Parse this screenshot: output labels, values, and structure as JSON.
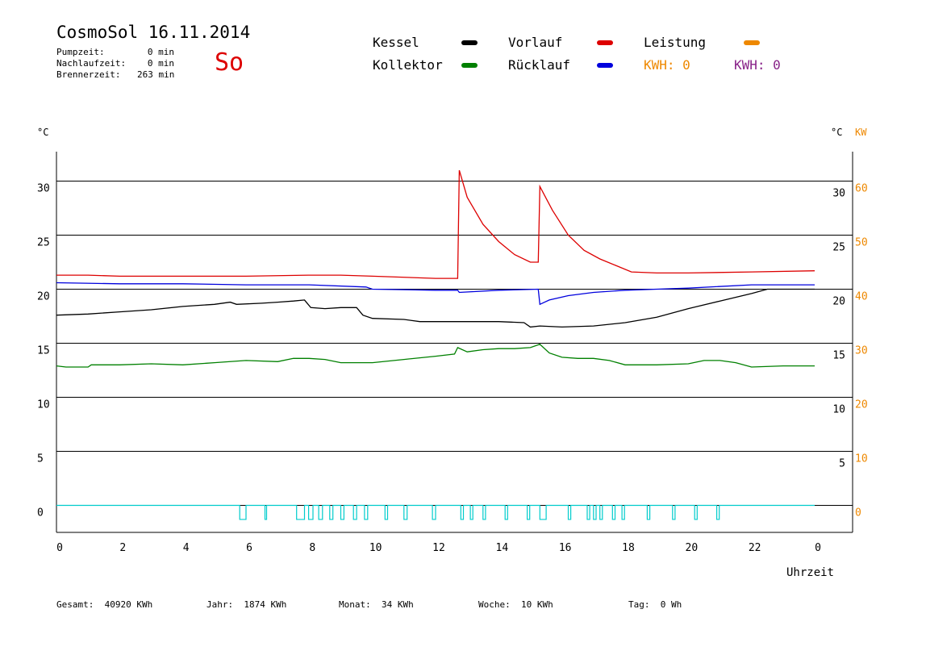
{
  "header": {
    "title": "CosmoSol 16.11.2014",
    "weekday": "So",
    "stats": [
      {
        "label": "Pumpzeit:",
        "value": "0 min"
      },
      {
        "label": "Nachlaufzeit:",
        "value": "0 min"
      },
      {
        "label": "Brennerzeit:",
        "value": "263 min"
      }
    ]
  },
  "legend": {
    "items": [
      {
        "label": "Kessel",
        "color": "#000000"
      },
      {
        "label": "Vorlauf",
        "color": "#dd0000"
      },
      {
        "label": "Leistung",
        "color": "#ee8800"
      },
      {
        "label": "Kollektor",
        "color": "#008000"
      },
      {
        "label": "Rücklauf",
        "color": "#0000dd"
      }
    ],
    "kwh_left": {
      "text": "KWH: 0",
      "color": "#ee8800"
    },
    "kwh_right": {
      "text": "KWH: 0",
      "color": "#882288"
    }
  },
  "chart_data": {
    "type": "line",
    "x_label": "Uhrzeit",
    "x_tick_labels": [
      "0",
      "2",
      "4",
      "6",
      "8",
      "10",
      "12",
      "14",
      "16",
      "18",
      "20",
      "22",
      "0"
    ],
    "xlim": [
      0,
      24
    ],
    "y_left_unit": "°C",
    "y_right_unit": "°C",
    "y_right2_unit": "KW",
    "y_left_ticks": [
      "0",
      "5",
      "10",
      "15",
      "20",
      "25",
      "30"
    ],
    "y_right_ticks": [
      "5",
      "10",
      "15",
      "20",
      "25",
      "30"
    ],
    "y_right2_ticks": [
      "0",
      "10",
      "20",
      "30",
      "40",
      "50",
      "60"
    ],
    "ylim": [
      -2.5,
      32.7
    ],
    "grid": true,
    "series": [
      {
        "name": "Vorlauf",
        "color": "#dd0000",
        "points": [
          [
            0,
            21.3
          ],
          [
            1,
            21.3
          ],
          [
            2,
            21.2
          ],
          [
            4,
            21.2
          ],
          [
            6,
            21.2
          ],
          [
            8,
            21.3
          ],
          [
            9,
            21.3
          ],
          [
            10,
            21.2
          ],
          [
            12,
            21.0
          ],
          [
            12.7,
            21.0
          ],
          [
            12.75,
            31.0
          ],
          [
            13.0,
            28.5
          ],
          [
            13.5,
            26.0
          ],
          [
            14.0,
            24.4
          ],
          [
            14.5,
            23.2
          ],
          [
            15.0,
            22.5
          ],
          [
            15.25,
            22.5
          ],
          [
            15.3,
            29.5
          ],
          [
            15.7,
            27.3
          ],
          [
            16.2,
            25.0
          ],
          [
            16.7,
            23.6
          ],
          [
            17.2,
            22.8
          ],
          [
            17.7,
            22.2
          ],
          [
            18.2,
            21.6
          ],
          [
            19,
            21.5
          ],
          [
            20,
            21.5
          ],
          [
            22,
            21.6
          ],
          [
            24,
            21.7
          ]
        ]
      },
      {
        "name": "Rücklauf",
        "color": "#0000dd",
        "points": [
          [
            0,
            20.6
          ],
          [
            2,
            20.5
          ],
          [
            4,
            20.5
          ],
          [
            6,
            20.4
          ],
          [
            8,
            20.4
          ],
          [
            9.8,
            20.2
          ],
          [
            10,
            20.0
          ],
          [
            12,
            19.9
          ],
          [
            12.7,
            19.9
          ],
          [
            12.75,
            19.7
          ],
          [
            14,
            19.9
          ],
          [
            15.25,
            20.0
          ],
          [
            15.3,
            18.6
          ],
          [
            15.6,
            19.0
          ],
          [
            16.2,
            19.4
          ],
          [
            17,
            19.7
          ],
          [
            18,
            19.9
          ],
          [
            19,
            20.0
          ],
          [
            20,
            20.1
          ],
          [
            22,
            20.4
          ],
          [
            24,
            20.4
          ]
        ]
      },
      {
        "name": "Kessel",
        "color": "#000000",
        "points": [
          [
            0,
            17.6
          ],
          [
            1,
            17.7
          ],
          [
            2,
            17.9
          ],
          [
            3,
            18.1
          ],
          [
            4,
            18.4
          ],
          [
            5,
            18.6
          ],
          [
            5.5,
            18.8
          ],
          [
            5.7,
            18.6
          ],
          [
            6.5,
            18.7
          ],
          [
            7,
            18.8
          ],
          [
            7.5,
            18.9
          ],
          [
            7.85,
            19.0
          ],
          [
            8.05,
            18.3
          ],
          [
            8.5,
            18.2
          ],
          [
            9,
            18.3
          ],
          [
            9.5,
            18.3
          ],
          [
            9.7,
            17.6
          ],
          [
            10,
            17.3
          ],
          [
            11,
            17.2
          ],
          [
            11.5,
            17.0
          ],
          [
            12,
            17.0
          ],
          [
            13,
            17.0
          ],
          [
            14,
            17.0
          ],
          [
            14.8,
            16.9
          ],
          [
            15,
            16.5
          ],
          [
            15.3,
            16.6
          ],
          [
            16,
            16.5
          ],
          [
            17,
            16.6
          ],
          [
            18,
            16.9
          ],
          [
            19,
            17.4
          ],
          [
            20,
            18.2
          ],
          [
            21,
            18.9
          ],
          [
            22,
            19.6
          ],
          [
            22.5,
            20.0
          ],
          [
            24,
            20.0
          ]
        ]
      },
      {
        "name": "Kollektor",
        "color": "#008000",
        "points": [
          [
            0,
            12.9
          ],
          [
            0.3,
            12.8
          ],
          [
            1,
            12.8
          ],
          [
            1.1,
            13.0
          ],
          [
            2,
            13.0
          ],
          [
            3,
            13.1
          ],
          [
            4,
            13.0
          ],
          [
            5,
            13.2
          ],
          [
            6,
            13.4
          ],
          [
            7,
            13.3
          ],
          [
            7.5,
            13.6
          ],
          [
            8,
            13.6
          ],
          [
            8.5,
            13.5
          ],
          [
            9,
            13.2
          ],
          [
            10,
            13.2
          ],
          [
            11,
            13.5
          ],
          [
            12,
            13.8
          ],
          [
            12.6,
            14.0
          ],
          [
            12.7,
            14.6
          ],
          [
            13,
            14.2
          ],
          [
            13.5,
            14.4
          ],
          [
            14,
            14.5
          ],
          [
            14.5,
            14.5
          ],
          [
            15,
            14.6
          ],
          [
            15.3,
            14.9
          ],
          [
            15.6,
            14.1
          ],
          [
            16,
            13.7
          ],
          [
            16.5,
            13.6
          ],
          [
            17,
            13.6
          ],
          [
            17.5,
            13.4
          ],
          [
            18,
            13.0
          ],
          [
            19,
            13.0
          ],
          [
            20,
            13.1
          ],
          [
            20.5,
            13.4
          ],
          [
            21,
            13.4
          ],
          [
            21.5,
            13.2
          ],
          [
            22,
            12.8
          ],
          [
            23,
            12.9
          ],
          [
            24,
            12.9
          ]
        ]
      },
      {
        "name": "Leistung",
        "color": "#ee8800",
        "points": []
      },
      {
        "name": "Pumpe",
        "color": "#00cccc",
        "pulses": [
          [
            5.8,
            6.0
          ],
          [
            6.6,
            6.65
          ],
          [
            7.6,
            7.85
          ],
          [
            7.98,
            8.12
          ],
          [
            8.3,
            8.42
          ],
          [
            8.65,
            8.75
          ],
          [
            9.0,
            9.1
          ],
          [
            9.4,
            9.5
          ],
          [
            9.75,
            9.85
          ],
          [
            10.4,
            10.48
          ],
          [
            11.0,
            11.1
          ],
          [
            11.9,
            12.0
          ],
          [
            12.8,
            12.88
          ],
          [
            13.1,
            13.18
          ],
          [
            13.5,
            13.58
          ],
          [
            14.2,
            14.28
          ],
          [
            14.9,
            14.98
          ],
          [
            15.3,
            15.5
          ],
          [
            16.2,
            16.28
          ],
          [
            16.8,
            16.88
          ],
          [
            17.0,
            17.08
          ],
          [
            17.2,
            17.28
          ],
          [
            17.6,
            17.68
          ],
          [
            17.9,
            17.98
          ],
          [
            18.7,
            18.78
          ],
          [
            19.5,
            19.58
          ],
          [
            20.2,
            20.28
          ],
          [
            20.9,
            20.98
          ]
        ]
      }
    ]
  },
  "footer": [
    {
      "label": "Gesamt:",
      "value": "40920 KWh"
    },
    {
      "label": "Jahr:",
      "value": "1874 KWh"
    },
    {
      "label": "Monat:",
      "value": "34 KWh"
    },
    {
      "label": "Woche:",
      "value": "10 KWh"
    },
    {
      "label": "Tag:",
      "value": "0 Wh"
    }
  ]
}
